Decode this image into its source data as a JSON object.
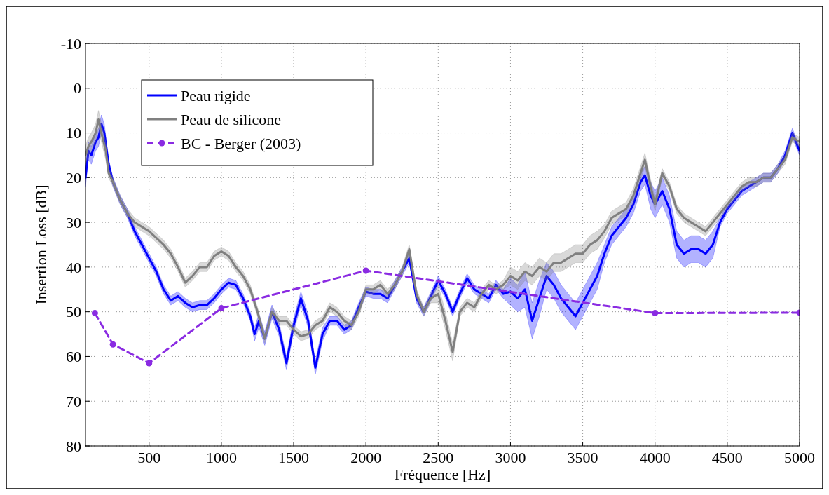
{
  "chart_data": {
    "type": "line",
    "xlabel": "Fréquence [Hz]",
    "ylabel": "Insertion Loss [dB]",
    "xlim": [
      60,
      5000
    ],
    "xticks": [
      500,
      1000,
      1500,
      2000,
      2500,
      3000,
      3500,
      4000,
      4500,
      5000
    ],
    "ylim": [
      80,
      -10
    ],
    "yticks": [
      -10,
      0,
      10,
      20,
      30,
      40,
      50,
      60,
      70,
      80
    ],
    "grid": true,
    "legend": "top left",
    "series": [
      {
        "name": "Peau rigide",
        "color": "#0000ff",
        "marker": "none",
        "line_style": "solid",
        "x": [
          60,
          80,
          100,
          130,
          150,
          170,
          190,
          220,
          250,
          300,
          350,
          400,
          450,
          500,
          550,
          600,
          650,
          700,
          750,
          800,
          850,
          900,
          950,
          1000,
          1050,
          1100,
          1150,
          1200,
          1230,
          1260,
          1300,
          1350,
          1400,
          1450,
          1500,
          1550,
          1600,
          1650,
          1700,
          1750,
          1800,
          1850,
          1900,
          1950,
          2000,
          2050,
          2100,
          2150,
          2200,
          2250,
          2300,
          2350,
          2400,
          2450,
          2500,
          2550,
          2600,
          2650,
          2700,
          2750,
          2800,
          2850,
          2900,
          2950,
          3000,
          3050,
          3100,
          3150,
          3200,
          3250,
          3300,
          3350,
          3400,
          3450,
          3500,
          3550,
          3600,
          3650,
          3700,
          3750,
          3800,
          3850,
          3900,
          3930,
          3970,
          4000,
          4050,
          4100,
          4150,
          4200,
          4250,
          4300,
          4350,
          4400,
          4450,
          4500,
          4550,
          4600,
          4650,
          4700,
          4750,
          4800,
          4850,
          4900,
          4950,
          5000
        ],
        "values": [
          20,
          14,
          15,
          12,
          11,
          8,
          10,
          17,
          21,
          25,
          28,
          32,
          35,
          38,
          41,
          45,
          47.5,
          46.5,
          48,
          49,
          48.5,
          48.5,
          47,
          45,
          43.5,
          44,
          47,
          51,
          55,
          52,
          56,
          50,
          54,
          61.5,
          53,
          47,
          52,
          62.5,
          55,
          52,
          52,
          54,
          53,
          49,
          45.5,
          46,
          46,
          47,
          44,
          41,
          38,
          47,
          50,
          46.5,
          43,
          46,
          50,
          46,
          42.5,
          45,
          46,
          47,
          44,
          46,
          45.5,
          47,
          45,
          52,
          47,
          42,
          44,
          47,
          49,
          51,
          48,
          45,
          42,
          37,
          33,
          31,
          29,
          26,
          21,
          19.5,
          24,
          26,
          23,
          27,
          35,
          37,
          36,
          36,
          37,
          35,
          30,
          27,
          25,
          23,
          22,
          21,
          20,
          20,
          18,
          15,
          10,
          14
        ],
        "lower": [
          18,
          12,
          13,
          10,
          9,
          6,
          8,
          16,
          20,
          24,
          27,
          31,
          34,
          37,
          40,
          44,
          46.5,
          45.5,
          47,
          48,
          47.5,
          47.5,
          46,
          44,
          42.5,
          43,
          46,
          50,
          53.5,
          50.5,
          54.5,
          48.5,
          52.5,
          60,
          51.5,
          45.5,
          50.5,
          61,
          53.5,
          51,
          51,
          53,
          52,
          48,
          44.5,
          45,
          45,
          46,
          43,
          40,
          37,
          46,
          49,
          45.5,
          42,
          45,
          49,
          45,
          41.5,
          44,
          45,
          46,
          43,
          45,
          42.5,
          44,
          41,
          48,
          43,
          39,
          41,
          44,
          46,
          48,
          45,
          42,
          39,
          35,
          31,
          29,
          27,
          24,
          19,
          17.5,
          21,
          23,
          20,
          24,
          32,
          34,
          33,
          33,
          34,
          32,
          29,
          26,
          24,
          22,
          21,
          20,
          19,
          19,
          17,
          14,
          9,
          13
        ],
        "upper": [
          22,
          16,
          17,
          14,
          13,
          10,
          12,
          18,
          22,
          26,
          29,
          33,
          36,
          39,
          42,
          46,
          48.5,
          47.5,
          49,
          50,
          49.5,
          49.5,
          48,
          46,
          44.5,
          45,
          48,
          52,
          56.5,
          53.5,
          57.5,
          51.5,
          55.5,
          63,
          54.5,
          48.5,
          53.5,
          64,
          56.5,
          53,
          53,
          55,
          54,
          50,
          46.5,
          47,
          47,
          48,
          45,
          42,
          39,
          48,
          51,
          47.5,
          44,
          47,
          51,
          47,
          43.5,
          46,
          47,
          48,
          45,
          47,
          48.5,
          50,
          49,
          56,
          51,
          45,
          47,
          50,
          52,
          54,
          51,
          48,
          45,
          39,
          35,
          33,
          31,
          28,
          23,
          21.5,
          27,
          29,
          26,
          30,
          38,
          40,
          39,
          39,
          40,
          38,
          31,
          28,
          26,
          24,
          23,
          22,
          21,
          21,
          19,
          16,
          11,
          15
        ]
      },
      {
        "name": "Peau de silicone",
        "color": "#808080",
        "marker": "none",
        "line_style": "solid",
        "x": [
          60,
          80,
          100,
          130,
          150,
          170,
          200,
          220,
          250,
          300,
          350,
          400,
          450,
          500,
          550,
          600,
          650,
          700,
          750,
          800,
          850,
          900,
          950,
          1000,
          1050,
          1100,
          1150,
          1200,
          1250,
          1300,
          1350,
          1400,
          1450,
          1500,
          1550,
          1600,
          1650,
          1700,
          1750,
          1800,
          1850,
          1900,
          1950,
          2000,
          2050,
          2100,
          2150,
          2200,
          2250,
          2300,
          2350,
          2400,
          2450,
          2500,
          2550,
          2600,
          2650,
          2700,
          2750,
          2800,
          2850,
          2900,
          2950,
          3000,
          3050,
          3100,
          3150,
          3200,
          3250,
          3300,
          3350,
          3400,
          3450,
          3500,
          3550,
          3600,
          3650,
          3700,
          3750,
          3800,
          3850,
          3900,
          3930,
          3970,
          4000,
          4050,
          4100,
          4150,
          4200,
          4250,
          4300,
          4350,
          4400,
          4450,
          4500,
          4550,
          4600,
          4650,
          4700,
          4750,
          4800,
          4850,
          4900,
          4950,
          5000
        ],
        "values": [
          15,
          13,
          12,
          10,
          7,
          10,
          14,
          19,
          21,
          25,
          28,
          30,
          31,
          32,
          33.5,
          35,
          37,
          40,
          43.5,
          42,
          40,
          40,
          37.5,
          36.5,
          37.5,
          40,
          42,
          45,
          50,
          56,
          50,
          52,
          52,
          54,
          55.5,
          55,
          53,
          52,
          49,
          50,
          52,
          53,
          50,
          45,
          45,
          44,
          46,
          44,
          41,
          36,
          46,
          50,
          47,
          46,
          52,
          59,
          50,
          48,
          49,
          46,
          44,
          45,
          44,
          42,
          43,
          41,
          42,
          40,
          41,
          39,
          39,
          38,
          37,
          37,
          35,
          34,
          32,
          29,
          28,
          27,
          24,
          19,
          16,
          22,
          26,
          19,
          22,
          27,
          29,
          30,
          31,
          32,
          30,
          28,
          26,
          24,
          22,
          21,
          21,
          20,
          20,
          18,
          16,
          11,
          12
        ],
        "lower": [
          13,
          11,
          10,
          8,
          5,
          8,
          12,
          18,
          20,
          24,
          27,
          29,
          30,
          31,
          32.5,
          34,
          36,
          39,
          42.5,
          41,
          39,
          39,
          36.5,
          35.5,
          36.5,
          39,
          41,
          44,
          49,
          55,
          49,
          51,
          51,
          53,
          54.5,
          54,
          52,
          51,
          48,
          49,
          51,
          52,
          49,
          44,
          44,
          43,
          45,
          43,
          40,
          35,
          45,
          49,
          46,
          44,
          50,
          57,
          49,
          47,
          48,
          45,
          43,
          44,
          43,
          40,
          41,
          39,
          40,
          38,
          39,
          37,
          37,
          36,
          35,
          35,
          33,
          32,
          30.5,
          27.5,
          26.5,
          25.5,
          22.5,
          17.5,
          14.5,
          20.5,
          24.5,
          18,
          21,
          26,
          28,
          29,
          30,
          31,
          29,
          27,
          25,
          23,
          21,
          20,
          20,
          19,
          19,
          17,
          15,
          10,
          11
        ],
        "upper": [
          17,
          15,
          14,
          12,
          9,
          12,
          16,
          20,
          22,
          26,
          29,
          31,
          32,
          33,
          34.5,
          36,
          38,
          41,
          44.5,
          43,
          41,
          41,
          38.5,
          37.5,
          38.5,
          41,
          43,
          46,
          51,
          57,
          51,
          53,
          53,
          55,
          56.5,
          56,
          54,
          53,
          50,
          51,
          53,
          54,
          51,
          46,
          46,
          45,
          47,
          45,
          42,
          37,
          47,
          51,
          48,
          48,
          54,
          61,
          51,
          49,
          50,
          47,
          45,
          46,
          45,
          44,
          45,
          43,
          44,
          42,
          43,
          41,
          41,
          40,
          39,
          39,
          37,
          36,
          33.5,
          30.5,
          29.5,
          28.5,
          25.5,
          20.5,
          17.5,
          23.5,
          27.5,
          20,
          23,
          28,
          30,
          31,
          32,
          33,
          31,
          29,
          27,
          25,
          23,
          22,
          22,
          21,
          21,
          19,
          17,
          12,
          13
        ]
      },
      {
        "name": "BC - Berger (2003)",
        "color": "#8a2be2",
        "marker": "circle",
        "line_style": "dashed",
        "x": [
          125,
          250,
          500,
          1000,
          2000,
          4000,
          5000
        ],
        "values": [
          50.3,
          57.3,
          61.5,
          49.2,
          40.8,
          50.3,
          50.2
        ]
      }
    ]
  }
}
